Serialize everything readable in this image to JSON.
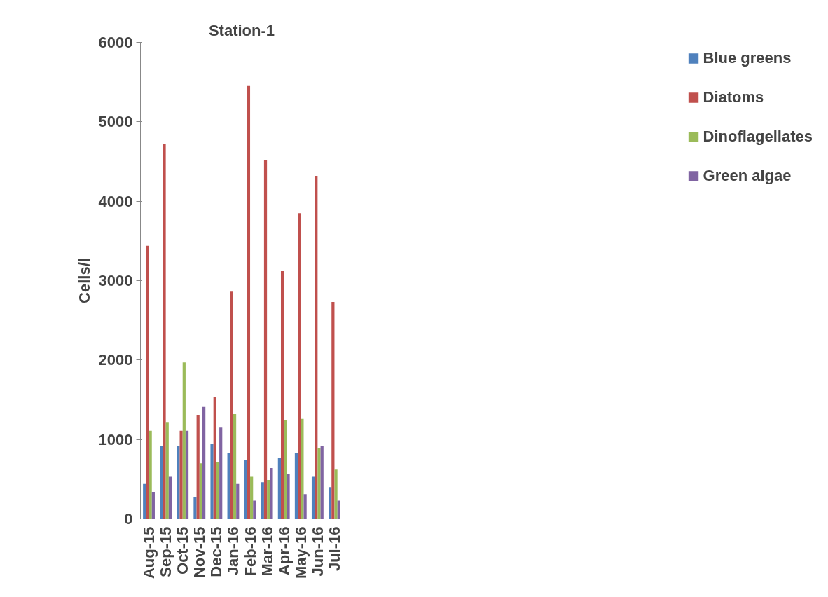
{
  "chart_data": {
    "type": "bar",
    "title": "Station-1",
    "ylabel": "Cells/l",
    "categories": [
      "Aug-15",
      "Sep-15",
      "Oct-15",
      "Nov-15",
      "Dec-15",
      "Jan-16",
      "Feb-16",
      "Mar-16",
      "Apr-16",
      "May-16",
      "Jun-16",
      "Jul-16"
    ],
    "series": [
      {
        "name": "Blue greens",
        "color": "#4f81bd",
        "values": [
          440,
          920,
          920,
          270,
          940,
          830,
          740,
          460,
          770,
          830,
          530,
          400
        ]
      },
      {
        "name": "Diatoms",
        "color": "#c0504d",
        "values": [
          3440,
          4720,
          1110,
          1310,
          1540,
          2860,
          5450,
          4520,
          3120,
          3850,
          4320,
          2730
        ]
      },
      {
        "name": "Dinoflagellates",
        "color": "#9bbb59",
        "values": [
          1110,
          1220,
          1970,
          700,
          720,
          1320,
          530,
          490,
          1240,
          1260,
          890,
          620
        ]
      },
      {
        "name": "Green algae",
        "color": "#8064a2",
        "values": [
          340,
          530,
          1110,
          1410,
          1150,
          440,
          230,
          640,
          570,
          310,
          920,
          230
        ]
      }
    ],
    "ylim": [
      0,
      6000
    ],
    "yticks": [
      0,
      1000,
      2000,
      3000,
      4000,
      5000,
      6000
    ],
    "grid": false,
    "legend": "right"
  }
}
